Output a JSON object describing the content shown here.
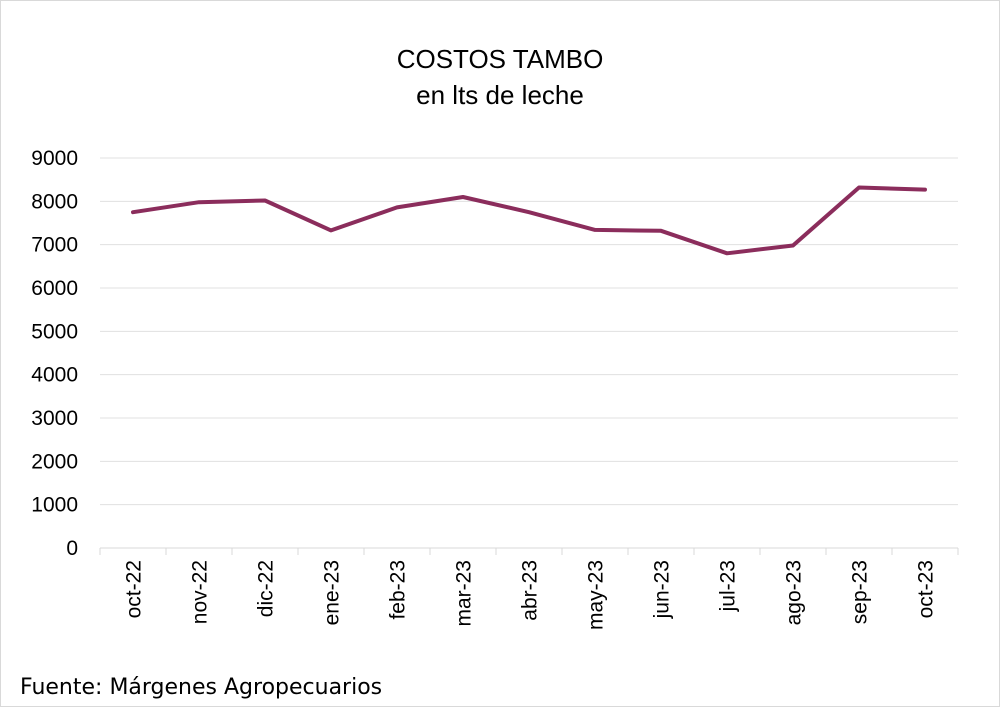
{
  "chart_data": {
    "type": "line",
    "title": "COSTOS TAMBO",
    "subtitle": "en lts de leche",
    "categories": [
      "oct-22",
      "nov-22",
      "dic-22",
      "ene-23",
      "feb-23",
      "mar-23",
      "abr-23",
      "may-23",
      "jun-23",
      "jul-23",
      "ago-23",
      "sep-23",
      "oct-23"
    ],
    "series": [
      {
        "values": [
          7750,
          7980,
          8020,
          7330,
          7860,
          8100,
          7750,
          7340,
          7320,
          6800,
          6980,
          8320,
          8270
        ]
      }
    ],
    "ylim": [
      0,
      9000
    ],
    "yticks": [
      0,
      1000,
      2000,
      3000,
      4000,
      5000,
      6000,
      7000,
      8000,
      9000
    ],
    "grid": true,
    "legend": "none",
    "colors": {
      "line": "#8b2d5c",
      "grid": "#e0e0e0",
      "axis": "#d9d9d9"
    }
  },
  "source": "Fuente: Márgenes Agropecuarios"
}
